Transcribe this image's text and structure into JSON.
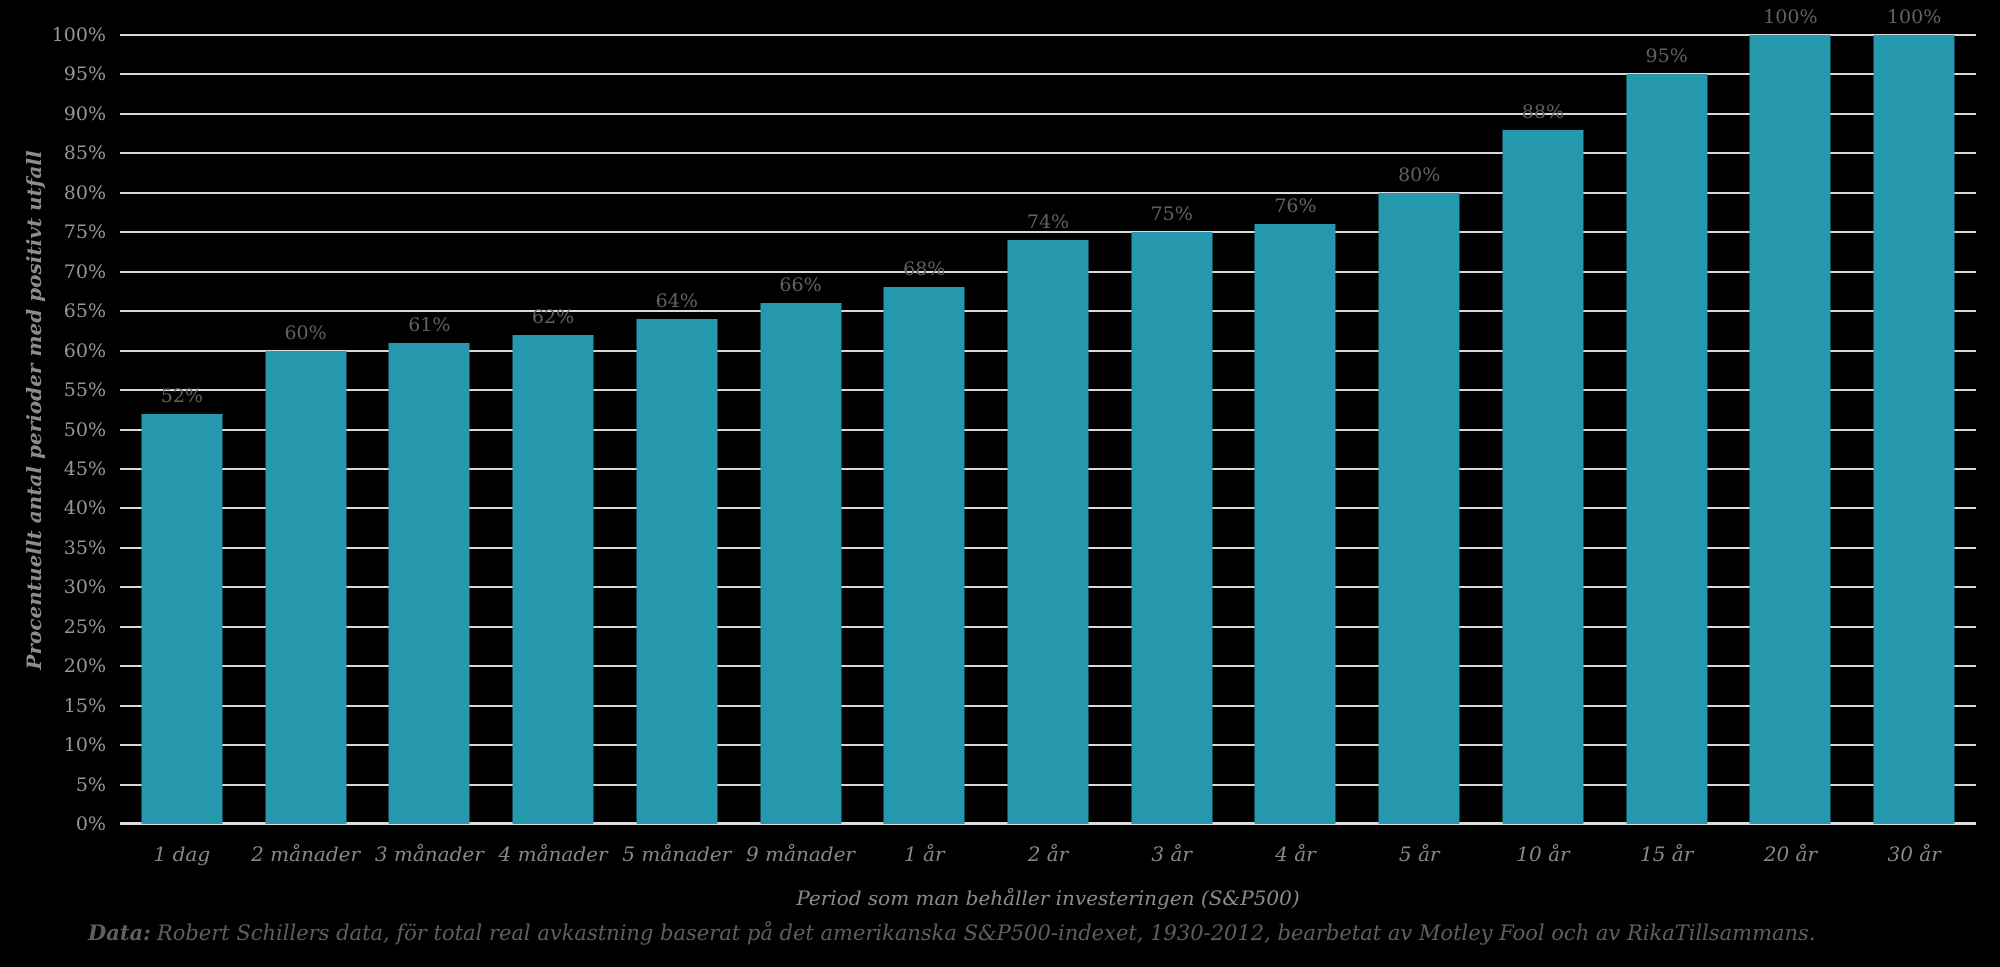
{
  "chart_data": {
    "type": "bar",
    "title": "",
    "xlabel": "Period som man behåller investeringen (S&P500)",
    "ylabel": "Procentuellt antal perioder med positivt utfall",
    "categories": [
      "1 dag",
      "2 månader",
      "3 månader",
      "4 månader",
      "5 månader",
      "9 månader",
      "1 år",
      "2 år",
      "3 år",
      "4 år",
      "5 år",
      "10 år",
      "15 år",
      "20 år",
      "30 år"
    ],
    "values": [
      52,
      60,
      61,
      62,
      64,
      66,
      68,
      74,
      75,
      76,
      80,
      88,
      95,
      100,
      100
    ],
    "data_labels": [
      "52%",
      "60%",
      "61%",
      "62%",
      "64%",
      "66%",
      "68%",
      "74%",
      "75%",
      "76%",
      "80%",
      "88%",
      "95%",
      "100%",
      "100%"
    ],
    "ylim": [
      0,
      100
    ],
    "y_tick_step": 5,
    "y_tick_labels": [
      "0%",
      "5%",
      "10%",
      "15%",
      "20%",
      "25%",
      "30%",
      "35%",
      "40%",
      "45%",
      "50%",
      "55%",
      "60%",
      "65%",
      "70%",
      "75%",
      "80%",
      "85%",
      "90%",
      "95%",
      "100%"
    ],
    "grid": "horizontal",
    "legend": "none"
  },
  "footer": {
    "prefix": "Data:",
    "text": "Robert Schillers data, för  total real avkastning baserat på det amerikanska S&P500-indexet, 1930-2012, bearbetat av Motley Fool och av RikaTillsammans."
  },
  "colors": {
    "background": "#000000",
    "bar": "#2598ae",
    "gridline": "#d9d9d9",
    "axis_line": "#dcdcdc",
    "y_tick_label": "#969696",
    "x_tick_label": "#878787",
    "data_label": "#616161",
    "axis_title": "#8c8c8c",
    "footer_text": "#5f5f5f"
  }
}
